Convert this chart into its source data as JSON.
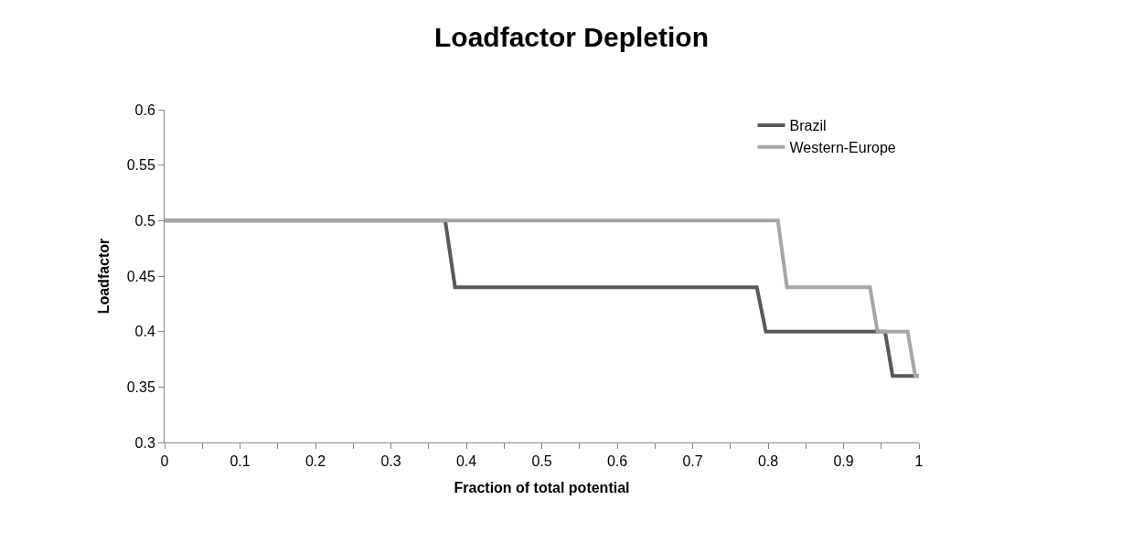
{
  "chart_data": {
    "type": "line",
    "title": "Loadfactor Depletion",
    "xlabel": "Fraction of total potential",
    "ylabel": "Loadfactor",
    "xlim": [
      0,
      1
    ],
    "ylim": [
      0.3,
      0.6
    ],
    "xticks": [
      0,
      {
        "value": 0.05,
        "label": null
      },
      0.1,
      {
        "value": 0.15,
        "label": null
      },
      0.2,
      {
        "value": 0.25,
        "label": null
      },
      0.3,
      {
        "value": 0.35,
        "label": null
      },
      0.4,
      {
        "value": 0.45,
        "label": null
      },
      0.5,
      {
        "value": 0.55,
        "label": null
      },
      0.6,
      {
        "value": 0.65,
        "label": null
      },
      0.7,
      {
        "value": 0.75,
        "label": null
      },
      0.8,
      {
        "value": 0.85,
        "label": null
      },
      0.9,
      {
        "value": 0.95,
        "label": null
      },
      1
    ],
    "yticks": [
      0.3,
      0.35,
      0.4,
      0.45,
      0.5,
      0.55,
      0.6
    ],
    "legend": "top right",
    "marker": "none",
    "line_style": "solid",
    "series": [
      {
        "name": "Brazil",
        "color": "#595959",
        "x": [
          0,
          0.372,
          0.385,
          0.785,
          0.797,
          0.955,
          0.965,
          1.0
        ],
        "values": [
          0.5,
          0.5,
          0.44,
          0.44,
          0.4,
          0.4,
          0.36,
          0.36
        ]
      },
      {
        "name": "Western-Europe",
        "color": "#a6a6a6",
        "x": [
          0,
          0.813,
          0.825,
          0.935,
          0.945,
          0.985,
          0.995,
          1.0
        ],
        "values": [
          0.5,
          0.5,
          0.44,
          0.44,
          0.4,
          0.4,
          0.36,
          0.36
        ]
      }
    ]
  }
}
